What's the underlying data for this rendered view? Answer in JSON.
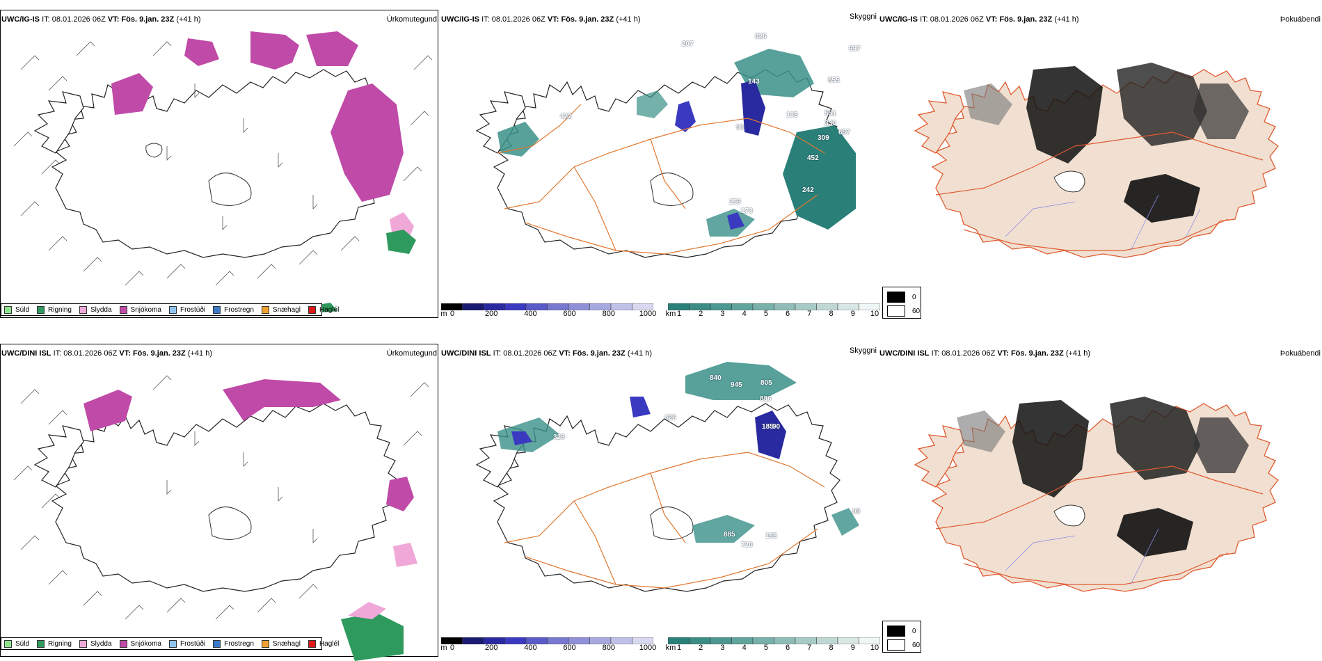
{
  "rows": [
    {
      "model": "UWC/IG-IS",
      "it_label": "IT:",
      "it_value": "08.01.2026 06Z",
      "vt_label": "VT:",
      "vt_value": "Fös. 9.jan. 23Z",
      "lead": "(+41 h)",
      "panels": {
        "precip_type": "Úrkomutegund",
        "visibility": "Skyggni",
        "fog": "Þokuábendi"
      },
      "visibility_labels": [
        "326",
        "207",
        "997",
        "855",
        "551",
        "330",
        "657",
        "309",
        "452",
        "242",
        "259",
        "173",
        "422",
        "98",
        "143",
        "135"
      ]
    },
    {
      "model": "UWC/DINI ISL",
      "it_label": "IT:",
      "it_value": "08.01.2026 06Z",
      "vt_label": "VT:",
      "vt_value": "Fös. 9.jan. 23Z",
      "lead": "(+41 h)",
      "panels": {
        "precip_type": "Úrkomutegund",
        "visibility": "Skyggni",
        "fog": "Þokuábendi"
      },
      "visibility_labels": [
        "840",
        "945",
        "805",
        "886",
        "185",
        "329",
        "426",
        "90",
        "885",
        "720",
        "185",
        "99"
      ]
    }
  ],
  "precip_legend": [
    {
      "label": "Súld",
      "color": "#8fe38f"
    },
    {
      "label": "Rigning",
      "color": "#2e9a5e"
    },
    {
      "label": "Slydda",
      "color": "#f0a8d8"
    },
    {
      "label": "Snjókoma",
      "color": "#c04aa8"
    },
    {
      "label": "Frostúði",
      "color": "#90c4f0"
    },
    {
      "label": "Frostregn",
      "color": "#3a78c8"
    },
    {
      "label": "Snæhagl",
      "color": "#f0a030"
    },
    {
      "label": "Haglél",
      "color": "#e01818"
    }
  ],
  "vis_colorbar_m": {
    "unit": "m",
    "ticks": [
      "0",
      "200",
      "400",
      "600",
      "800",
      "1000"
    ],
    "colors": [
      "#000000",
      "#1a1a70",
      "#2a2aa0",
      "#3a3ac0",
      "#5a5ac8",
      "#7878d0",
      "#9090d8",
      "#a8a8e0",
      "#c0c0e8",
      "#d8d8f0"
    ]
  },
  "vis_colorbar_km": {
    "unit": "km",
    "ticks": [
      "1",
      "2",
      "3",
      "4",
      "5",
      "6",
      "7",
      "8",
      "9",
      "10"
    ],
    "colors": [
      "#2a8078",
      "#3a8c84",
      "#4c9890",
      "#60a49c",
      "#78b0aa",
      "#90bcb8",
      "#a8cac6",
      "#c0d8d4",
      "#d8e6e4",
      "#f0f6f5"
    ]
  },
  "fog_legend": {
    "high": "0",
    "low": "60"
  },
  "colors": {
    "snow": "#c04aa8",
    "sleet": "#f0a8d8",
    "rain": "#2e9a5e",
    "vis_km": "#3a9088",
    "vis_m": "#2a2aa0",
    "roads": "#e07830",
    "land": "#f1e0d1"
  }
}
